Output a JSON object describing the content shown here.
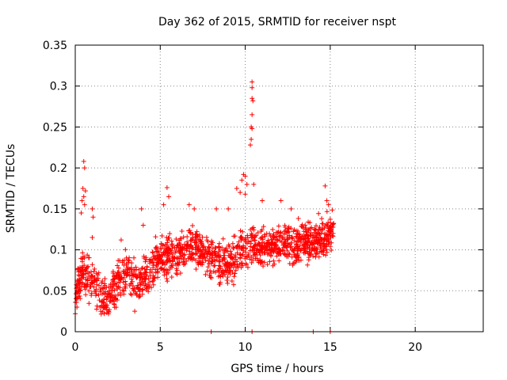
{
  "chart_data": {
    "type": "scatter",
    "title": "Day 362 of 2015, SRMTID for receiver nspt",
    "xlabel": "GPS time / hours",
    "ylabel": "SRMTID / TECUs",
    "xlim": [
      0,
      24
    ],
    "ylim": [
      0,
      0.35
    ],
    "xticks": [
      0,
      5,
      10,
      15,
      20
    ],
    "yticks": [
      0,
      0.05,
      0.1,
      0.15,
      0.2,
      0.25,
      0.3,
      0.35
    ],
    "xtick_labels": [
      "0",
      "5",
      "10",
      "15",
      "20"
    ],
    "ytick_labels": [
      "0",
      "0.05",
      "0.1",
      "0.15",
      "0.2",
      "0.25",
      "0.3",
      "0.35"
    ],
    "grid": true,
    "marker": "+",
    "color": "#ff0000",
    "data_time_range_hours": [
      0,
      15.2
    ],
    "trend": {
      "x": [
        0,
        0.4,
        0.8,
        1.2,
        1.6,
        2.0,
        2.5,
        3.0,
        3.5,
        4.0,
        4.5,
        5.0,
        5.5,
        6.0,
        6.5,
        7.0,
        7.5,
        8.0,
        8.5,
        9.0,
        9.5,
        10.0,
        10.5,
        11.0,
        11.5,
        12.0,
        12.5,
        13.0,
        13.5,
        14.0,
        14.5,
        15.0
      ],
      "y": [
        0.045,
        0.075,
        0.065,
        0.055,
        0.045,
        0.04,
        0.06,
        0.075,
        0.06,
        0.065,
        0.08,
        0.09,
        0.095,
        0.095,
        0.1,
        0.105,
        0.095,
        0.09,
        0.085,
        0.085,
        0.09,
        0.1,
        0.105,
        0.1,
        0.105,
        0.11,
        0.11,
        0.105,
        0.11,
        0.11,
        0.115,
        0.12
      ]
    },
    "spread": 0.022,
    "n_points": 1500,
    "outliers": [
      {
        "x": 0.5,
        "y": 0.208
      },
      {
        "x": 0.55,
        "y": 0.2
      },
      {
        "x": 0.45,
        "y": 0.175
      },
      {
        "x": 0.6,
        "y": 0.172
      },
      {
        "x": 0.5,
        "y": 0.165
      },
      {
        "x": 0.4,
        "y": 0.16
      },
      {
        "x": 0.35,
        "y": 0.145
      },
      {
        "x": 0.55,
        "y": 0.155
      },
      {
        "x": 1.0,
        "y": 0.15
      },
      {
        "x": 1.05,
        "y": 0.14
      },
      {
        "x": 1.0,
        "y": 0.115
      },
      {
        "x": 2.7,
        "y": 0.112
      },
      {
        "x": 3.9,
        "y": 0.15
      },
      {
        "x": 4.0,
        "y": 0.13
      },
      {
        "x": 5.4,
        "y": 0.176
      },
      {
        "x": 5.5,
        "y": 0.165
      },
      {
        "x": 5.2,
        "y": 0.155
      },
      {
        "x": 6.7,
        "y": 0.155
      },
      {
        "x": 7.0,
        "y": 0.15
      },
      {
        "x": 8.3,
        "y": 0.15
      },
      {
        "x": 9.0,
        "y": 0.15
      },
      {
        "x": 9.5,
        "y": 0.175
      },
      {
        "x": 9.9,
        "y": 0.192
      },
      {
        "x": 10.0,
        "y": 0.19
      },
      {
        "x": 9.8,
        "y": 0.185
      },
      {
        "x": 10.1,
        "y": 0.18
      },
      {
        "x": 9.7,
        "y": 0.17
      },
      {
        "x": 10.0,
        "y": 0.168
      },
      {
        "x": 10.4,
        "y": 0.305
      },
      {
        "x": 10.4,
        "y": 0.298
      },
      {
        "x": 10.4,
        "y": 0.285
      },
      {
        "x": 10.45,
        "y": 0.282
      },
      {
        "x": 10.4,
        "y": 0.265
      },
      {
        "x": 10.35,
        "y": 0.25
      },
      {
        "x": 10.4,
        "y": 0.248
      },
      {
        "x": 10.35,
        "y": 0.235
      },
      {
        "x": 10.3,
        "y": 0.228
      },
      {
        "x": 10.5,
        "y": 0.18
      },
      {
        "x": 11.0,
        "y": 0.16
      },
      {
        "x": 12.1,
        "y": 0.16
      },
      {
        "x": 12.7,
        "y": 0.15
      },
      {
        "x": 14.7,
        "y": 0.178
      },
      {
        "x": 14.8,
        "y": 0.16
      },
      {
        "x": 14.9,
        "y": 0.155
      },
      {
        "x": 0.0,
        "y": 0.022
      },
      {
        "x": 0.1,
        "y": 0.03
      },
      {
        "x": 1.5,
        "y": 0.025
      },
      {
        "x": 1.7,
        "y": 0.022
      },
      {
        "x": 3.5,
        "y": 0.025
      },
      {
        "x": 8.0,
        "y": 0.0
      },
      {
        "x": 10.4,
        "y": 0.0
      },
      {
        "x": 14.0,
        "y": 0.0
      },
      {
        "x": 15.0,
        "y": 0.0
      }
    ]
  }
}
